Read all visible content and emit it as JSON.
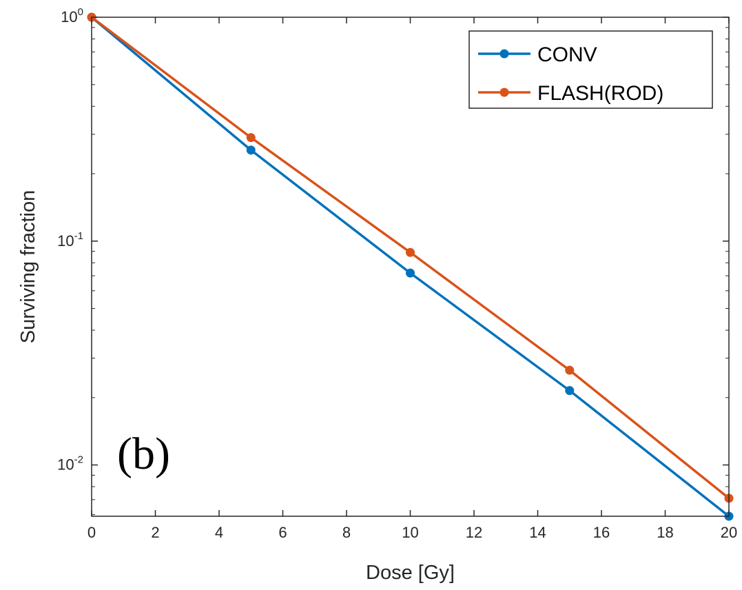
{
  "chart_data": {
    "type": "line",
    "panel_label": "(b)",
    "xlabel": "Dose [Gy]",
    "ylabel": "Surviving fraction",
    "xlim": [
      0,
      20
    ],
    "ylim": [
      0.0059,
      1
    ],
    "y_scale": "log",
    "grid": false,
    "legend_position": "top-right",
    "x_ticks": [
      0,
      2,
      4,
      6,
      8,
      10,
      12,
      14,
      16,
      18,
      20
    ],
    "y_ticks": [
      {
        "value": 1,
        "base": "10",
        "exp": "0"
      },
      {
        "value": 0.1,
        "base": "10",
        "exp": "-1"
      },
      {
        "value": 0.01,
        "base": "10",
        "exp": "-2"
      }
    ],
    "x": [
      0,
      5,
      10,
      15,
      20
    ],
    "series": [
      {
        "name": "CONV",
        "color": "#0072BD",
        "values": [
          1.0,
          0.255,
          0.072,
          0.0215,
          0.0059
        ]
      },
      {
        "name": "FLASH(ROD)",
        "color": "#D95319",
        "values": [
          1.0,
          0.29,
          0.089,
          0.0265,
          0.0071
        ]
      }
    ]
  }
}
